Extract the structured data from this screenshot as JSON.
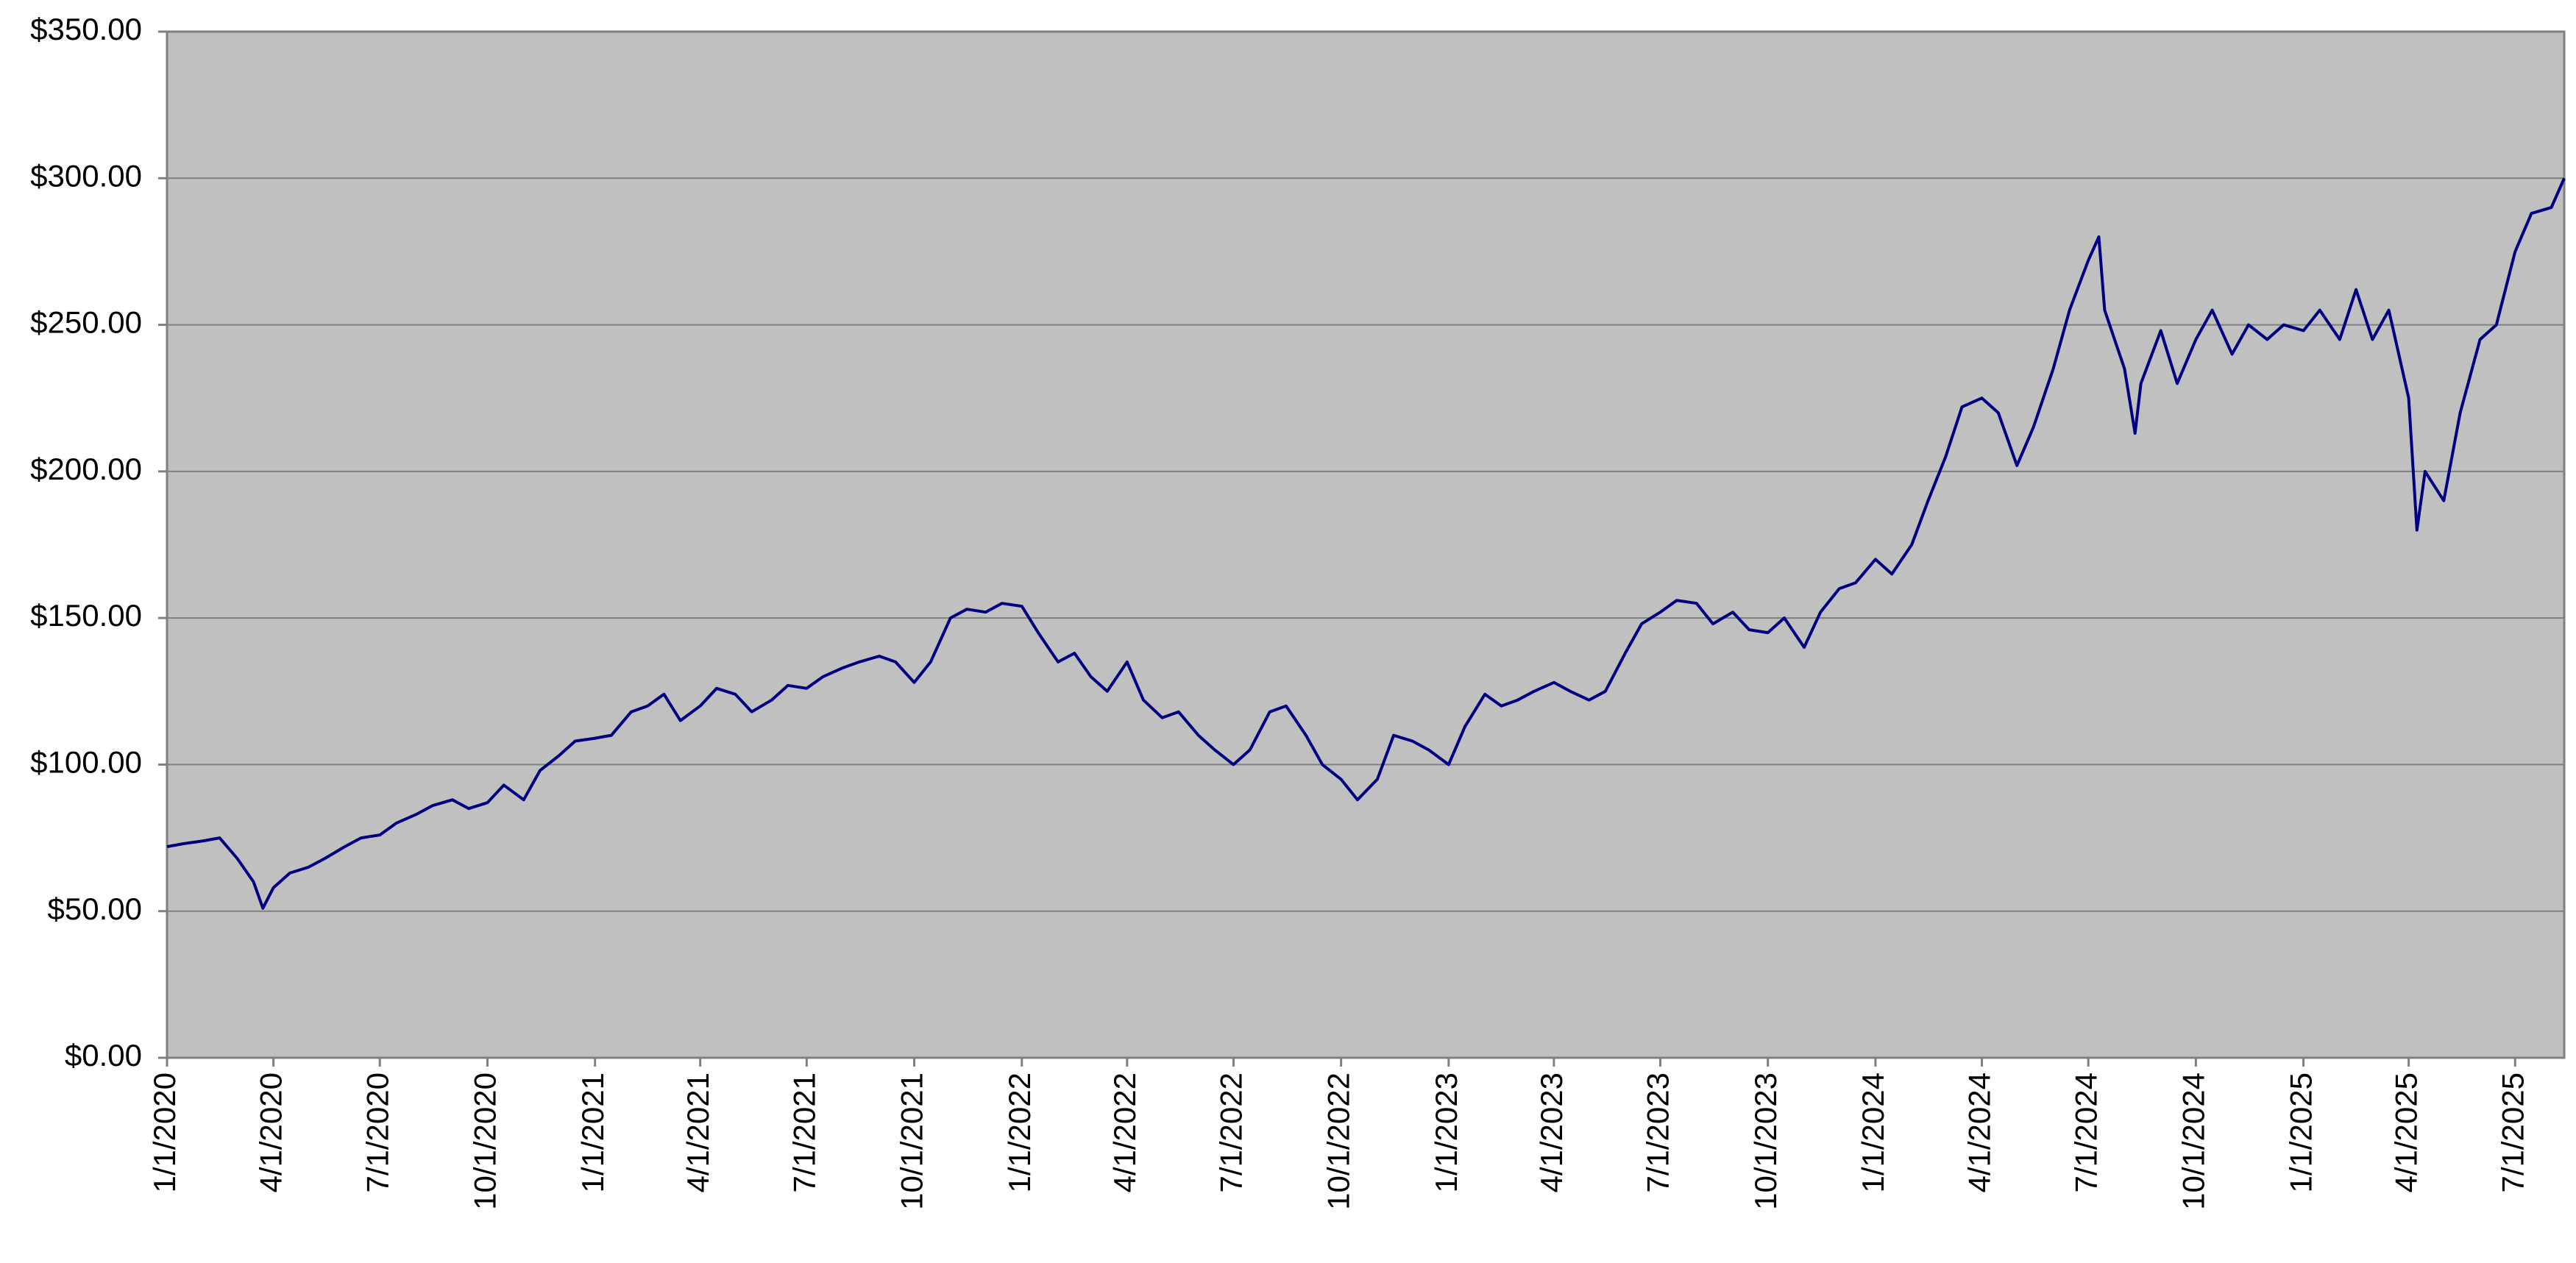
{
  "chart_data": {
    "type": "line",
    "series": [
      {
        "color": "#000080",
        "x": [
          "2020-01-01",
          "2020-01-15",
          "2020-02-01",
          "2020-02-15",
          "2020-03-01",
          "2020-03-15",
          "2020-03-23",
          "2020-04-01",
          "2020-04-15",
          "2020-05-01",
          "2020-05-15",
          "2020-06-01",
          "2020-06-15",
          "2020-07-01",
          "2020-07-15",
          "2020-08-01",
          "2020-08-15",
          "2020-09-01",
          "2020-09-15",
          "2020-10-01",
          "2020-10-15",
          "2020-11-01",
          "2020-11-15",
          "2020-12-01",
          "2020-12-15",
          "2021-01-01",
          "2021-01-15",
          "2021-02-01",
          "2021-02-15",
          "2021-03-01",
          "2021-03-15",
          "2021-04-01",
          "2021-04-15",
          "2021-05-01",
          "2021-05-15",
          "2021-06-01",
          "2021-06-15",
          "2021-07-01",
          "2021-07-15",
          "2021-08-01",
          "2021-08-15",
          "2021-09-01",
          "2021-09-15",
          "2021-10-01",
          "2021-10-15",
          "2021-11-01",
          "2021-11-15",
          "2021-12-01",
          "2021-12-15",
          "2022-01-01",
          "2022-01-15",
          "2022-02-01",
          "2022-02-15",
          "2022-03-01",
          "2022-03-15",
          "2022-04-01",
          "2022-04-15",
          "2022-05-01",
          "2022-05-15",
          "2022-06-01",
          "2022-06-15",
          "2022-07-01",
          "2022-07-15",
          "2022-08-01",
          "2022-08-15",
          "2022-09-01",
          "2022-09-15",
          "2022-10-01",
          "2022-10-15",
          "2022-11-01",
          "2022-11-15",
          "2022-12-01",
          "2022-12-15",
          "2023-01-01",
          "2023-01-15",
          "2023-02-01",
          "2023-02-15",
          "2023-03-01",
          "2023-03-15",
          "2023-04-01",
          "2023-04-15",
          "2023-05-01",
          "2023-05-15",
          "2023-06-01",
          "2023-06-15",
          "2023-07-01",
          "2023-07-15",
          "2023-08-01",
          "2023-08-15",
          "2023-09-01",
          "2023-09-15",
          "2023-10-01",
          "2023-10-15",
          "2023-11-01",
          "2023-11-15",
          "2023-12-01",
          "2023-12-15",
          "2024-01-01",
          "2024-01-15",
          "2024-02-01",
          "2024-02-15",
          "2024-03-01",
          "2024-03-15",
          "2024-04-01",
          "2024-04-15",
          "2024-05-01",
          "2024-05-15",
          "2024-06-01",
          "2024-06-15",
          "2024-07-01",
          "2024-07-10",
          "2024-07-15",
          "2024-08-01",
          "2024-08-10",
          "2024-08-15",
          "2024-09-01",
          "2024-09-15",
          "2024-10-01",
          "2024-10-15",
          "2024-11-01",
          "2024-11-15",
          "2024-12-01",
          "2024-12-15",
          "2025-01-01",
          "2025-01-15",
          "2025-02-01",
          "2025-02-15",
          "2025-03-01",
          "2025-03-15",
          "2025-04-01",
          "2025-04-08",
          "2025-04-15",
          "2025-05-01",
          "2025-05-15",
          "2025-06-01",
          "2025-06-15",
          "2025-07-01",
          "2025-07-15",
          "2025-08-01",
          "2025-08-12"
        ],
        "values": [
          72,
          73,
          74,
          75,
          68,
          60,
          51,
          58,
          63,
          65,
          68,
          72,
          75,
          76,
          80,
          83,
          86,
          88,
          85,
          87,
          93,
          88,
          98,
          103,
          108,
          109,
          110,
          118,
          120,
          124,
          115,
          120,
          126,
          124,
          118,
          122,
          127,
          126,
          130,
          133,
          135,
          137,
          135,
          128,
          135,
          150,
          153,
          152,
          155,
          154,
          145,
          135,
          138,
          130,
          125,
          135,
          122,
          116,
          118,
          110,
          105,
          100,
          105,
          118,
          120,
          110,
          100,
          95,
          88,
          95,
          110,
          108,
          105,
          100,
          113,
          124,
          120,
          122,
          125,
          128,
          125,
          122,
          125,
          138,
          148,
          152,
          156,
          155,
          148,
          152,
          146,
          145,
          150,
          140,
          152,
          160,
          162,
          170,
          165,
          175,
          190,
          205,
          222,
          225,
          220,
          202,
          215,
          235,
          255,
          272,
          280,
          255,
          235,
          213,
          230,
          248,
          230,
          245,
          255,
          240,
          250,
          245,
          250,
          248,
          255,
          245,
          262,
          245,
          255,
          225,
          180,
          200,
          190,
          220,
          245,
          250,
          275,
          288,
          290,
          300
        ]
      }
    ],
    "xlim": [
      "2020-01-01",
      "2025-08-12"
    ],
    "xticks": [
      {
        "value": "2020-01-01",
        "label": "1/1/2020"
      },
      {
        "value": "2020-04-01",
        "label": "4/1/2020"
      },
      {
        "value": "2020-07-01",
        "label": "7/1/2020"
      },
      {
        "value": "2020-10-01",
        "label": "10/1/2020"
      },
      {
        "value": "2021-01-01",
        "label": "1/1/2021"
      },
      {
        "value": "2021-04-01",
        "label": "4/1/2021"
      },
      {
        "value": "2021-07-01",
        "label": "7/1/2021"
      },
      {
        "value": "2021-10-01",
        "label": "10/1/2021"
      },
      {
        "value": "2022-01-01",
        "label": "1/1/2022"
      },
      {
        "value": "2022-04-01",
        "label": "4/1/2022"
      },
      {
        "value": "2022-07-01",
        "label": "7/1/2022"
      },
      {
        "value": "2022-10-01",
        "label": "10/1/2022"
      },
      {
        "value": "2023-01-01",
        "label": "1/1/2023"
      },
      {
        "value": "2023-04-01",
        "label": "4/1/2023"
      },
      {
        "value": "2023-07-01",
        "label": "7/1/2023"
      },
      {
        "value": "2023-10-01",
        "label": "10/1/2023"
      },
      {
        "value": "2024-01-01",
        "label": "1/1/2024"
      },
      {
        "value": "2024-04-01",
        "label": "4/1/2024"
      },
      {
        "value": "2024-07-01",
        "label": "7/1/2024"
      },
      {
        "value": "2024-10-01",
        "label": "10/1/2024"
      },
      {
        "value": "2025-01-01",
        "label": "1/1/2025"
      },
      {
        "value": "2025-04-01",
        "label": "4/1/2025"
      },
      {
        "value": "2025-07-01",
        "label": "7/1/2025"
      }
    ],
    "ylim": [
      0,
      350
    ],
    "yticks": [
      {
        "value": 0,
        "label": "$0.00"
      },
      {
        "value": 50,
        "label": "$50.00"
      },
      {
        "value": 100,
        "label": "$100.00"
      },
      {
        "value": 150,
        "label": "$150.00"
      },
      {
        "value": 200,
        "label": "$200.00"
      },
      {
        "value": 250,
        "label": "$250.00"
      },
      {
        "value": 300,
        "label": "$300.00"
      },
      {
        "value": 350,
        "label": "$350.00"
      }
    ],
    "grid": true
  }
}
